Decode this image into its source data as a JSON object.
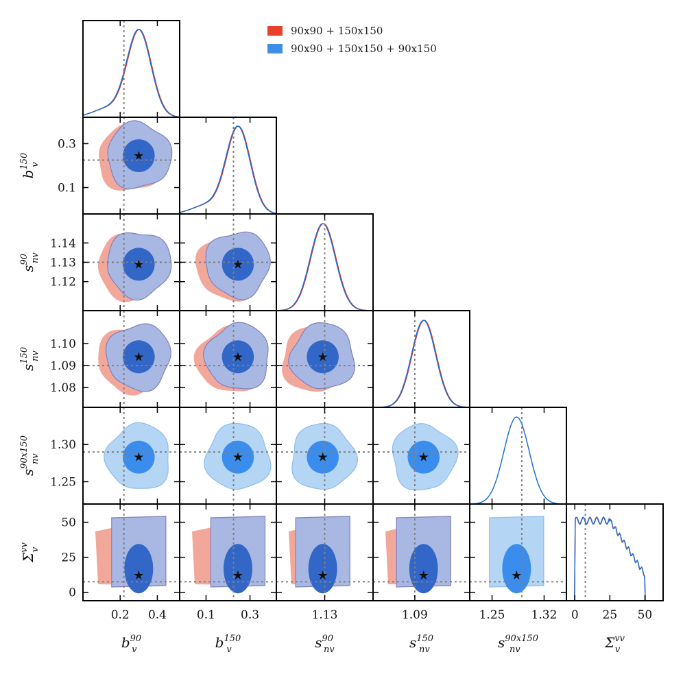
{
  "chart_data": {
    "type": "corner",
    "title": "",
    "legend": {
      "placement": "top-right",
      "entries": [
        {
          "label": "90x90 + 150x150",
          "color": "#e8412c"
        },
        {
          "label": "90x90 + 150x150 + 90x150",
          "color": "#3d8fe6"
        }
      ]
    },
    "colors": {
      "red_fill_outer": "#f1a89b",
      "red_line": "#d6331f",
      "blue_fill_outer": "#b5d5f5",
      "blue_fill_inner": "#3b8ded",
      "blue_line": "#1f6fd6",
      "overlap_fill_outer": "#a8b8e2",
      "overlap_fill_inner": "#3266c7",
      "overlap_edge": "#7f7fbf",
      "truth_line": "#808080"
    },
    "parameters": [
      {
        "name": "b_v^90",
        "axis_label": "b",
        "sup": "90",
        "sub": "v",
        "range": [
          0.0,
          0.52
        ],
        "ticks": [
          0.2,
          0.4
        ],
        "tick_labels": [
          "0.2",
          "0.4"
        ],
        "truth": 0.22,
        "best_fit": 0.3,
        "sigma": 0.065
      },
      {
        "name": "b_v^150",
        "axis_label": "b",
        "sup": "150",
        "sub": "v",
        "range": [
          -0.02,
          0.42
        ],
        "ticks": [
          0.1,
          0.3
        ],
        "tick_labels": [
          "0.1",
          "0.3"
        ],
        "truth": 0.225,
        "best_fit": 0.245,
        "sigma": 0.055
      },
      {
        "name": "s_nv^90",
        "axis_label": "s",
        "sup": "90",
        "sub": "nv",
        "range": [
          1.105,
          1.155
        ],
        "ticks": [
          1.12,
          1.13,
          1.14
        ],
        "tick_labels": [
          "1.12",
          "1.13",
          "1.14"
        ],
        "x_ticks": [
          1.13
        ],
        "x_tick_labels": [
          "1.13"
        ],
        "truth": 1.13,
        "best_fit": 1.129,
        "sigma": 0.0065
      },
      {
        "name": "s_nv^150",
        "axis_label": "s",
        "sup": "150",
        "sub": "nv",
        "range": [
          1.071,
          1.115
        ],
        "ticks": [
          1.08,
          1.09,
          1.1
        ],
        "tick_labels": [
          "1.08",
          "1.09",
          "1.10"
        ],
        "x_ticks": [
          1.09
        ],
        "x_tick_labels": [
          "1.09"
        ],
        "truth": 1.09,
        "best_fit": 1.094,
        "sigma": 0.0055
      },
      {
        "name": "s_nv^90x150",
        "axis_label": "s",
        "sup": "90x150",
        "sub": "nv",
        "range": [
          1.22,
          1.35
        ],
        "ticks": [
          1.25,
          1.3
        ],
        "tick_labels": [
          "1.25",
          "1.30"
        ],
        "x_ticks": [
          1.25,
          1.32
        ],
        "x_tick_labels": [
          "1.25",
          "1.32"
        ],
        "truth": 1.29,
        "best_fit": 1.283,
        "sigma": 0.017
      },
      {
        "name": "Sigma_v^vv",
        "axis_label": "Σ",
        "sup": "vv",
        "sub": "v",
        "range": [
          -6,
          63
        ],
        "ticks": [
          0,
          25,
          50
        ],
        "tick_labels": [
          "0",
          "25",
          "50"
        ],
        "truth": 7.5,
        "best_fit": 12,
        "sigma": 14
      }
    ],
    "blue_only_parameter": "s_nv^90x150",
    "panels": "lower-triangle 2D contours (68% and 95%) with 1D marginalized posteriors on the diagonal; dotted grey lines mark fiducial values; star marks best fit"
  }
}
